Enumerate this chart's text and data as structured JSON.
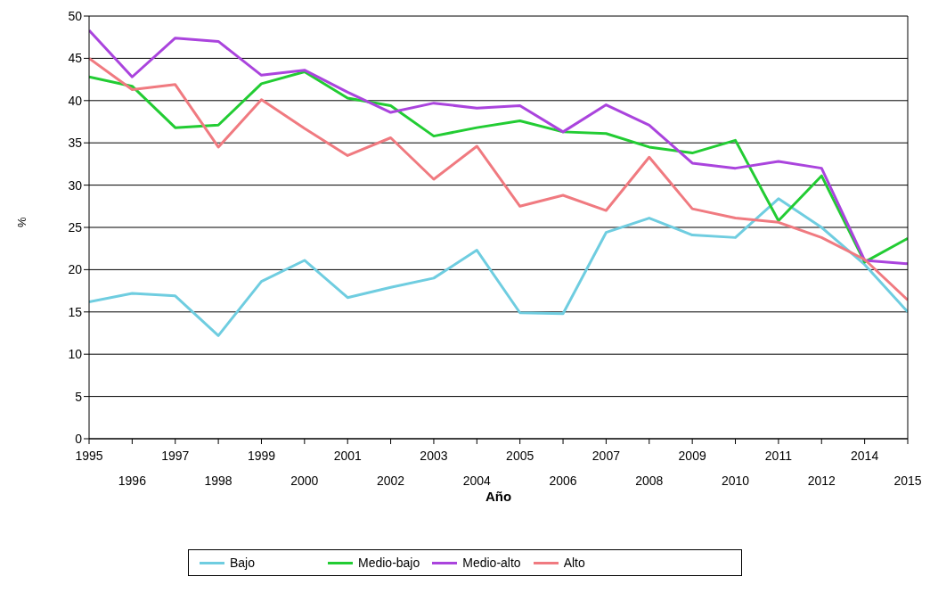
{
  "chart_data": {
    "type": "line",
    "xlabel": "Año",
    "ylabel": "%",
    "categories": [
      "1995",
      "1996",
      "1997",
      "1998",
      "1999",
      "2000",
      "2001",
      "2002",
      "2003",
      "2004",
      "2005",
      "2006",
      "2007",
      "2008",
      "2009",
      "2010",
      "2011",
      "2012",
      "2014",
      "2015"
    ],
    "series": [
      {
        "name": "Bajo",
        "color": "#6fcde0",
        "values": [
          16.2,
          17.2,
          16.9,
          12.2,
          18.6,
          21.1,
          16.7,
          17.9,
          19.0,
          22.3,
          14.9,
          14.8,
          24.4,
          26.1,
          24.1,
          23.8,
          28.4,
          25.0,
          20.6,
          15.0
        ]
      },
      {
        "name": "Medio-bajo",
        "color": "#22cc33",
        "values": [
          42.8,
          41.7,
          36.8,
          37.1,
          42.0,
          43.4,
          40.3,
          39.4,
          35.8,
          36.8,
          37.6,
          36.3,
          36.1,
          34.5,
          33.8,
          35.3,
          25.8,
          31.1,
          20.9,
          23.7
        ]
      },
      {
        "name": "Medio-alto",
        "color": "#aa44dd",
        "values": [
          48.3,
          42.8,
          47.4,
          47.0,
          43.0,
          43.6,
          41.0,
          38.6,
          39.7,
          39.1,
          39.4,
          36.3,
          39.5,
          37.1,
          32.6,
          32.0,
          32.8,
          32.0,
          21.1,
          20.7
        ]
      },
      {
        "name": "Alto",
        "color": "#f07a80",
        "values": [
          45.0,
          41.3,
          41.9,
          34.5,
          40.1,
          36.7,
          33.5,
          35.6,
          30.7,
          34.6,
          27.5,
          28.8,
          27.0,
          33.3,
          27.2,
          26.1,
          25.6,
          23.8,
          21.2,
          16.4
        ]
      }
    ],
    "ylim": [
      0,
      50
    ],
    "yticks": [
      0,
      5,
      10,
      15,
      20,
      25,
      30,
      35,
      40,
      45,
      50
    ],
    "grid": "y",
    "legend": "bottom",
    "marker": "none",
    "line_style": "solid"
  }
}
